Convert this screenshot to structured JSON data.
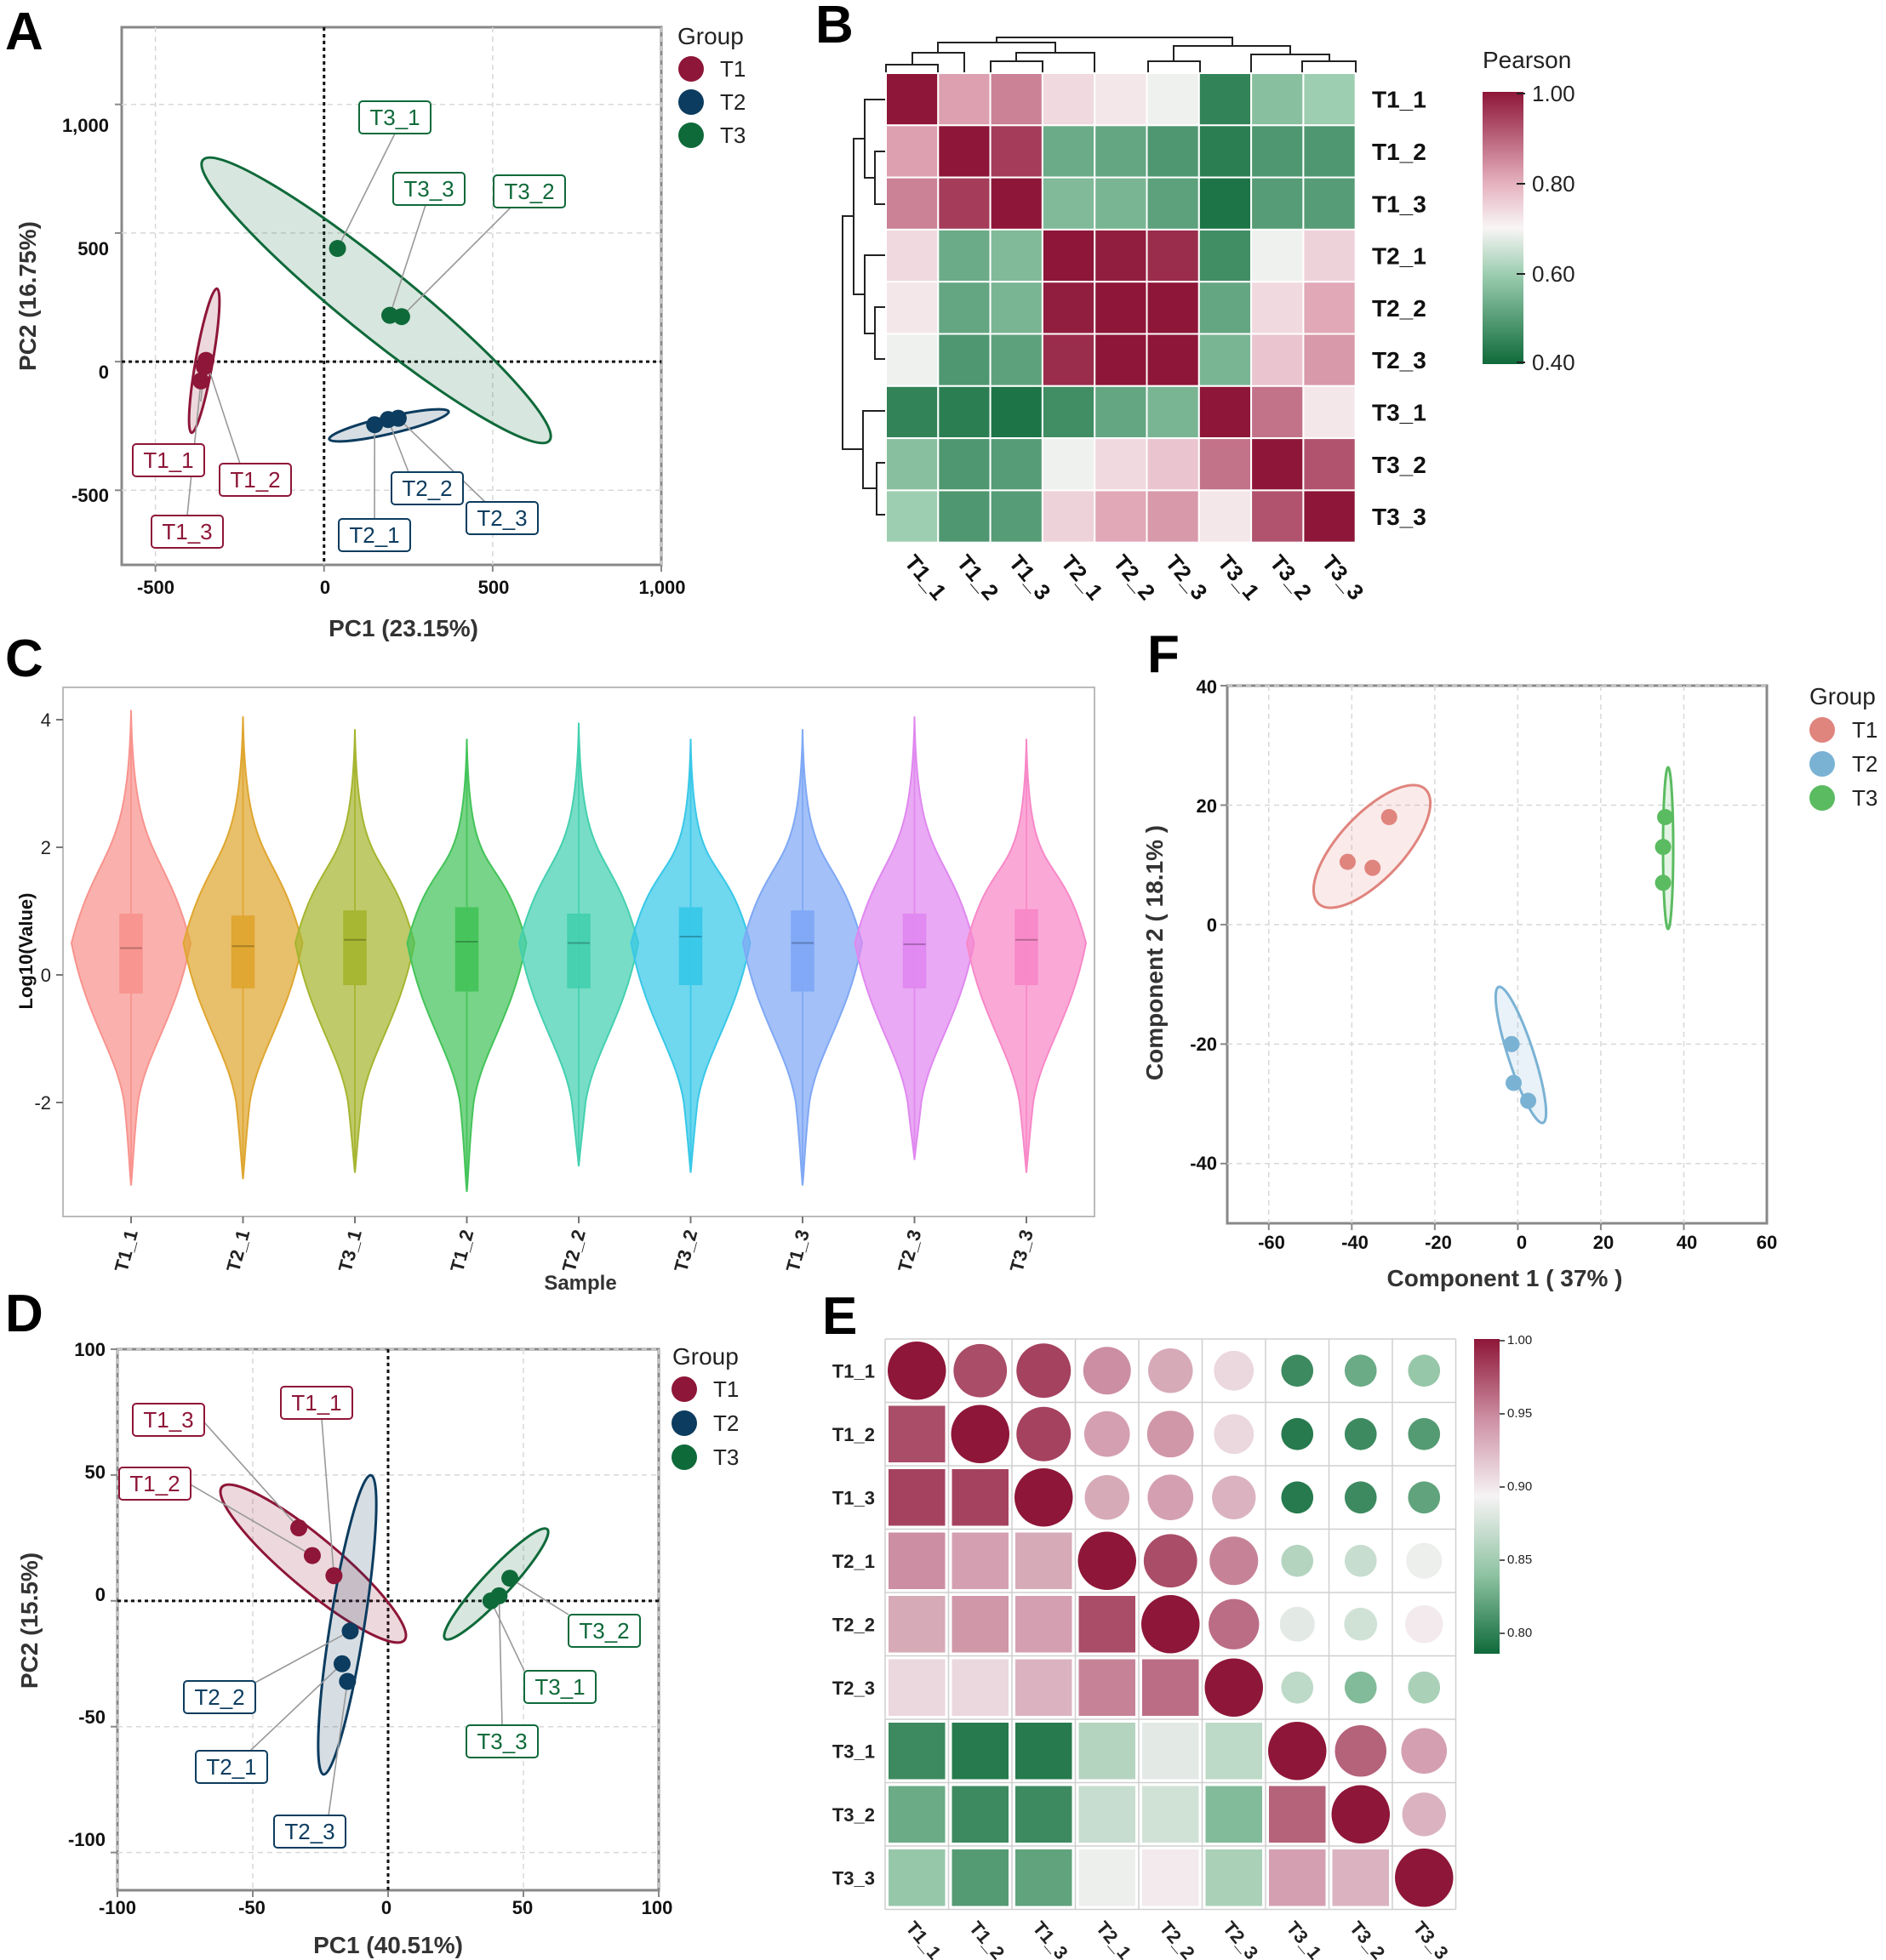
{
  "colors": {
    "T1": "#8e1638",
    "T2": "#0c3c5f",
    "T3": "#0f6a3a",
    "F_T1": "#e0847e",
    "F_T2": "#7ab2d4",
    "F_T3": "#5abb60",
    "violin": [
      "#f8938e",
      "#dfa630",
      "#a6b530",
      "#44c45a",
      "#44d0b0",
      "#38c8e8",
      "#7fa8f5",
      "#e088f0",
      "#f888c8"
    ]
  },
  "panels": {
    "A": {
      "letter": "A",
      "xlabel": "PC1 (23.15%)",
      "ylabel": "PC2 (16.75%)",
      "xticks": [
        "-500",
        "0",
        "500",
        "1,000"
      ],
      "yticks": [
        "1,000",
        "500",
        "0",
        "-500"
      ],
      "legend_title": "Group",
      "legend": [
        "T1",
        "T2",
        "T3"
      ]
    },
    "B": {
      "letter": "B",
      "colorbar_title": "Pearson",
      "colorbar_ticks": [
        "1.00",
        "0.80",
        "0.60",
        "0.40"
      ],
      "rows": [
        "T1_1",
        "T1_2",
        "T1_3",
        "T2_1",
        "T2_2",
        "T2_3",
        "T3_1",
        "T3_2",
        "T3_3"
      ],
      "cols": [
        "T1_1",
        "T1_2",
        "T1_3",
        "T2_1",
        "T2_2",
        "T2_3",
        "T3_1",
        "T3_2",
        "T3_3"
      ]
    },
    "C": {
      "letter": "C",
      "xlabel": "Sample",
      "ylabel": "Log10(Value)",
      "yticks": [
        "4",
        "2",
        "0",
        "-2"
      ],
      "samples": [
        "T1_1",
        "T2_1",
        "T3_1",
        "T1_2",
        "T2_2",
        "T3_2",
        "T1_3",
        "T2_3",
        "T3_3"
      ]
    },
    "D": {
      "letter": "D",
      "xlabel": "PC1 (40.51%)",
      "ylabel": "PC2 (15.5%)",
      "xticks": [
        "-100",
        "-50",
        "0",
        "50",
        "100"
      ],
      "yticks": [
        "100",
        "50",
        "0",
        "-50",
        "-100"
      ],
      "legend_title": "Group",
      "legend": [
        "T1",
        "T2",
        "T3"
      ]
    },
    "E": {
      "letter": "E",
      "colorbar_ticks": [
        "1.00",
        "0.95",
        "0.90",
        "0.85",
        "0.80"
      ],
      "rows": [
        "T1_1",
        "T1_2",
        "T1_3",
        "T2_1",
        "T2_2",
        "T2_3",
        "T3_1",
        "T3_2",
        "T3_3"
      ],
      "cols": [
        "T1_1",
        "T1_2",
        "T1_3",
        "T2_1",
        "T2_2",
        "T2_3",
        "T3_1",
        "T3_2",
        "T3_3"
      ]
    },
    "F": {
      "letter": "F",
      "xlabel": "Component 1 ( 37% )",
      "ylabel": "Component 2 ( 18.1% )",
      "xticks": [
        "-60",
        "-40",
        "-20",
        "0",
        "20",
        "40",
        "60"
      ],
      "yticks": [
        "40",
        "20",
        "0",
        "-20",
        "-40"
      ],
      "legend_title": "Group",
      "legend": [
        "T1",
        "T2",
        "T3"
      ]
    }
  },
  "chart_data": [
    {
      "panel": "A",
      "type": "scatter",
      "title": "",
      "xlabel": "PC1 (23.15%)",
      "ylabel": "PC2 (16.75%)",
      "xlim": [
        -600,
        1000
      ],
      "ylim": [
        -790,
        1300
      ],
      "points": [
        {
          "label": "T1_1",
          "group": "T1",
          "x": -355,
          "y": -20
        },
        {
          "label": "T1_2",
          "group": "T1",
          "x": -350,
          "y": 5
        },
        {
          "label": "T1_3",
          "group": "T1",
          "x": -365,
          "y": -75
        },
        {
          "label": "T2_1",
          "group": "T2",
          "x": 150,
          "y": -245
        },
        {
          "label": "T2_2",
          "group": "T2",
          "x": 190,
          "y": -225
        },
        {
          "label": "T2_3",
          "group": "T2",
          "x": 220,
          "y": -220
        },
        {
          "label": "T3_1",
          "group": "T3",
          "x": 40,
          "y": 440
        },
        {
          "label": "T3_2",
          "group": "T3",
          "x": 230,
          "y": 175
        },
        {
          "label": "T3_3",
          "group": "T3",
          "x": 195,
          "y": 180
        }
      ]
    },
    {
      "panel": "B",
      "type": "heatmap",
      "title": "Pearson",
      "rows": [
        "T1_1",
        "T1_2",
        "T1_3",
        "T2_1",
        "T2_2",
        "T2_3",
        "T3_1",
        "T3_2",
        "T3_3"
      ],
      "cols": [
        "T1_1",
        "T1_2",
        "T1_3",
        "T2_1",
        "T2_2",
        "T2_3",
        "T3_1",
        "T3_2",
        "T3_3"
      ],
      "range": [
        0.4,
        1.0
      ],
      "values": [
        [
          1.0,
          0.82,
          0.86,
          0.74,
          0.72,
          0.69,
          0.45,
          0.57,
          0.6
        ],
        [
          0.82,
          1.0,
          0.95,
          0.53,
          0.52,
          0.49,
          0.44,
          0.49,
          0.49
        ],
        [
          0.86,
          0.95,
          1.0,
          0.56,
          0.55,
          0.51,
          0.42,
          0.5,
          0.5
        ],
        [
          0.74,
          0.53,
          0.56,
          1.0,
          0.99,
          0.97,
          0.47,
          0.69,
          0.75
        ],
        [
          0.72,
          0.52,
          0.55,
          0.99,
          1.0,
          1.0,
          0.52,
          0.74,
          0.81
        ],
        [
          0.69,
          0.49,
          0.51,
          0.97,
          1.0,
          1.0,
          0.55,
          0.77,
          0.83
        ],
        [
          0.45,
          0.44,
          0.42,
          0.47,
          0.52,
          0.55,
          1.0,
          0.88,
          0.72
        ],
        [
          0.57,
          0.49,
          0.5,
          0.69,
          0.74,
          0.77,
          0.88,
          1.0,
          0.92
        ],
        [
          0.6,
          0.49,
          0.5,
          0.75,
          0.81,
          0.83,
          0.72,
          0.92,
          1.0
        ]
      ]
    },
    {
      "panel": "C",
      "type": "violin",
      "xlabel": "Sample",
      "ylabel": "Log10(Value)",
      "ylim": [
        -3.6,
        4.5
      ],
      "samples": [
        "T1_1",
        "T2_1",
        "T3_1",
        "T1_2",
        "T2_2",
        "T3_2",
        "T1_3",
        "T2_3",
        "T3_3"
      ],
      "max": [
        4.15,
        4.05,
        3.85,
        3.7,
        3.95,
        3.7,
        3.85,
        4.05,
        3.7
      ],
      "min": [
        -3.3,
        -3.2,
        -3.1,
        -3.4,
        -3.0,
        -3.1,
        -3.3,
        -2.9,
        -3.1
      ],
      "q1": [
        -0.28,
        -0.2,
        -0.15,
        -0.25,
        -0.2,
        -0.15,
        -0.25,
        -0.2,
        -0.15
      ],
      "median": [
        0.42,
        0.45,
        0.55,
        0.52,
        0.5,
        0.6,
        0.5,
        0.48,
        0.55
      ],
      "q3": [
        0.95,
        0.92,
        1.0,
        1.05,
        0.95,
        1.05,
        1.0,
        0.95,
        1.02
      ]
    },
    {
      "panel": "D",
      "type": "scatter",
      "title": "",
      "xlabel": "PC1 (40.51%)",
      "ylabel": "PC2 (15.5%)",
      "xlim": [
        -100,
        100
      ],
      "ylim": [
        -115,
        100
      ],
      "points": [
        {
          "label": "T1_1",
          "group": "T1",
          "x": -20,
          "y": 10
        },
        {
          "label": "T1_2",
          "group": "T1",
          "x": -28,
          "y": 18
        },
        {
          "label": "T1_3",
          "group": "T1",
          "x": -33,
          "y": 29
        },
        {
          "label": "T2_1",
          "group": "T2",
          "x": -17,
          "y": -25
        },
        {
          "label": "T2_2",
          "group": "T2",
          "x": -14,
          "y": -12
        },
        {
          "label": "T2_3",
          "group": "T2",
          "x": -15,
          "y": -32
        },
        {
          "label": "T3_1",
          "group": "T3",
          "x": 38,
          "y": 0
        },
        {
          "label": "T3_2",
          "group": "T3",
          "x": 45,
          "y": 9
        },
        {
          "label": "T3_3",
          "group": "T3",
          "x": 41,
          "y": 2
        }
      ]
    },
    {
      "panel": "E",
      "type": "heatmap",
      "title": "",
      "rows": [
        "T1_1",
        "T1_2",
        "T1_3",
        "T2_1",
        "T2_2",
        "T2_3",
        "T3_1",
        "T3_2",
        "T3_3"
      ],
      "cols": [
        "T1_1",
        "T1_2",
        "T1_3",
        "T2_1",
        "T2_2",
        "T2_3",
        "T3_1",
        "T3_2",
        "T3_3"
      ],
      "range": [
        0.78,
        1.0
      ],
      "values": [
        [
          1.0,
          0.975,
          0.98,
          0.945,
          0.93,
          0.905,
          0.8,
          0.82,
          0.84
        ],
        [
          0.975,
          1.0,
          0.98,
          0.935,
          0.94,
          0.905,
          0.79,
          0.8,
          0.81
        ],
        [
          0.98,
          0.98,
          1.0,
          0.93,
          0.935,
          0.925,
          0.79,
          0.8,
          0.815
        ],
        [
          0.945,
          0.935,
          0.93,
          1.0,
          0.975,
          0.95,
          0.855,
          0.865,
          0.885
        ],
        [
          0.93,
          0.94,
          0.935,
          0.975,
          1.0,
          0.96,
          0.88,
          0.87,
          0.895
        ],
        [
          0.905,
          0.905,
          0.925,
          0.95,
          0.96,
          1.0,
          0.86,
          0.83,
          0.85
        ],
        [
          0.8,
          0.79,
          0.79,
          0.855,
          0.88,
          0.86,
          1.0,
          0.965,
          0.935
        ],
        [
          0.82,
          0.8,
          0.8,
          0.865,
          0.87,
          0.83,
          0.965,
          1.0,
          0.925
        ],
        [
          0.84,
          0.81,
          0.815,
          0.885,
          0.895,
          0.85,
          0.935,
          0.925,
          1.0
        ]
      ]
    },
    {
      "panel": "F",
      "type": "scatter",
      "title": "",
      "xlabel": "Component 1 ( 37% )",
      "ylabel": "Component 2 ( 18.1% )",
      "xlim": [
        -70,
        60
      ],
      "ylim": [
        -50,
        40
      ],
      "points": [
        {
          "group": "T1",
          "x": -41,
          "y": 10.5
        },
        {
          "group": "T1",
          "x": -35,
          "y": 9.5
        },
        {
          "group": "T1",
          "x": -31,
          "y": 18
        },
        {
          "group": "T2",
          "x": -1.5,
          "y": -20
        },
        {
          "group": "T2",
          "x": -1,
          "y": -26.5
        },
        {
          "group": "T2",
          "x": 2.5,
          "y": -29.5
        },
        {
          "group": "T3",
          "x": 35.5,
          "y": 18
        },
        {
          "group": "T3",
          "x": 35,
          "y": 13
        },
        {
          "group": "T3",
          "x": 35,
          "y": 7
        }
      ]
    }
  ]
}
